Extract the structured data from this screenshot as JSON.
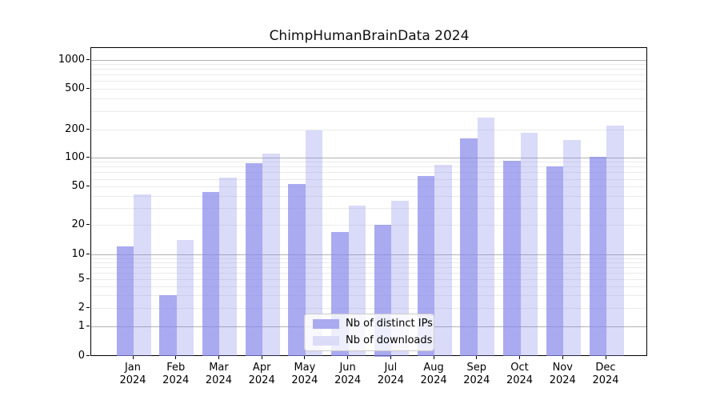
{
  "chart_data": {
    "type": "bar",
    "title": "ChimpHumanBrainData 2024",
    "categories": [
      "Jan 2024",
      "Feb 2024",
      "Mar 2024",
      "Apr 2024",
      "May 2024",
      "Jun 2024",
      "Jul 2024",
      "Aug 2024",
      "Sep 2024",
      "Oct 2024",
      "Nov 2024",
      "Dec 2024"
    ],
    "series": [
      {
        "name": "Nb of distinct IPs",
        "color": "#aaaaf0",
        "values": [
          12,
          3,
          44,
          88,
          54,
          17,
          20,
          65,
          162,
          92,
          81,
          102
        ]
      },
      {
        "name": "Nb of downloads",
        "color": "#dcdcf9",
        "values": [
          42,
          14,
          62,
          110,
          195,
          32,
          36,
          84,
          260,
          185,
          155,
          220
        ]
      }
    ],
    "xlabel": "",
    "ylabel": "",
    "yscale": "symlog",
    "yticks": [
      0,
      1,
      2,
      5,
      10,
      20,
      50,
      100,
      200,
      500,
      1000
    ],
    "ylim": [
      0,
      1350
    ],
    "grid": true,
    "legend_position": "lower-center"
  }
}
